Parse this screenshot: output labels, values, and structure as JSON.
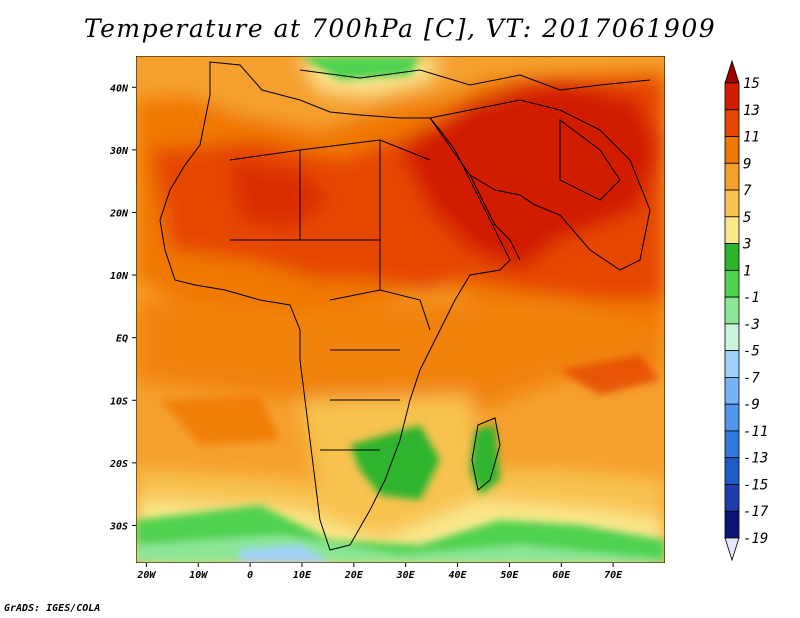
{
  "title": "Temperature at 700hPa [C], VT: 2017061909",
  "credit": "GrADS: IGES/COLA",
  "map": {
    "lon_range": [
      -22,
      80
    ],
    "lat_range": [
      -36,
      45
    ],
    "lon_ticks": [
      {
        "value": -20,
        "label": "20W"
      },
      {
        "value": -10,
        "label": "10W"
      },
      {
        "value": 0,
        "label": "0"
      },
      {
        "value": 10,
        "label": "10E"
      },
      {
        "value": 20,
        "label": "20E"
      },
      {
        "value": 30,
        "label": "30E"
      },
      {
        "value": 40,
        "label": "40E"
      },
      {
        "value": 50,
        "label": "50E"
      },
      {
        "value": 60,
        "label": "60E"
      },
      {
        "value": 70,
        "label": "70E"
      }
    ],
    "lat_ticks": [
      {
        "value": 40,
        "label": "40N"
      },
      {
        "value": 30,
        "label": "30N"
      },
      {
        "value": 20,
        "label": "20N"
      },
      {
        "value": 10,
        "label": "10N"
      },
      {
        "value": 0,
        "label": "EQ"
      },
      {
        "value": -10,
        "label": "10S"
      },
      {
        "value": -20,
        "label": "20S"
      },
      {
        "value": -30,
        "label": "30S"
      }
    ]
  },
  "colorbar": {
    "labels": [
      "15",
      "13",
      "11",
      "9",
      "7",
      "5",
      "3",
      "1",
      "-1",
      "-3",
      "-5",
      "-7",
      "-9",
      "-11",
      "-13",
      "-15",
      "-17",
      "-19"
    ],
    "colors": [
      "#a00000",
      "#d21e00",
      "#e64600",
      "#f07800",
      "#f5a02d",
      "#f8c350",
      "#fae88c",
      "#2db42d",
      "#50d250",
      "#8ce696",
      "#c8f5dc",
      "#a0d2fa",
      "#78b4f5",
      "#5096eb",
      "#3278dc",
      "#1e5ac8",
      "#1e3caa",
      "#0a1478",
      "#e6e6fa"
    ]
  }
}
